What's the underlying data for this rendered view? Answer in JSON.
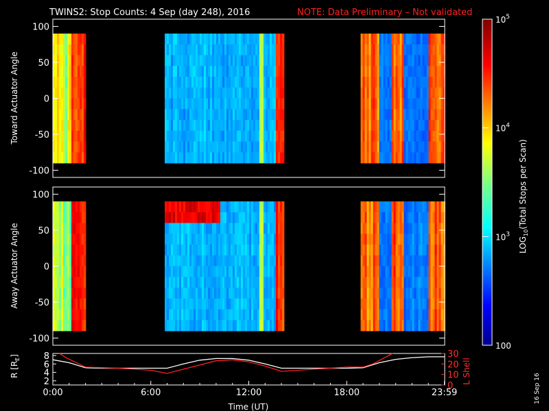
{
  "title": {
    "main": "TWINS2: Stop Counts:  4 Sep (day 248), 2016",
    "note": "NOTE: Data Preliminary – Not validated"
  },
  "side_stamp": "16 Sep 16",
  "chart_data": [
    {
      "type": "heatmap",
      "id": "toward",
      "ylabel": "Toward Actuator Angle",
      "ylim": [
        -110,
        110
      ],
      "yticks": [
        -100,
        -50,
        0,
        50,
        100
      ],
      "data_ylim": [
        -90,
        90
      ],
      "xlim": [
        0,
        24
      ],
      "segments": [
        {
          "start": 0.0,
          "end": 2.0
        },
        {
          "start": 6.85,
          "end": 14.15
        },
        {
          "start": 18.85,
          "end": 24.0
        }
      ],
      "color_scale": "log",
      "note": "Blue background (~10^2.8) with orange/red vertical bands near segment edges"
    },
    {
      "type": "heatmap",
      "id": "away",
      "ylabel": "Away Actuator Angle",
      "ylim": [
        -110,
        110
      ],
      "yticks": [
        -100,
        -50,
        0,
        50,
        100
      ],
      "data_ylim": [
        -90,
        90
      ],
      "xlim": [
        0,
        24
      ],
      "segments": [
        {
          "start": 0.0,
          "end": 2.0
        },
        {
          "start": 6.85,
          "end": 14.15
        },
        {
          "start": 18.85,
          "end": 24.0
        }
      ],
      "color_scale": "log",
      "note": "Red/orange horizontal band near +75 deg during 6:50-10:00"
    },
    {
      "type": "line",
      "id": "orbit",
      "ylabel_left": "R [R",
      "ylabel_left_sub": "E",
      "ylabel_left_end": "]",
      "ylabel_right": "L Shell",
      "xlim": [
        0,
        24
      ],
      "ylim_left": [
        1,
        8.5
      ],
      "ylim_right": [
        0,
        30
      ],
      "yticks_left": [
        2,
        4,
        6,
        8
      ],
      "yticks_right": [
        0,
        10,
        20,
        30
      ],
      "xticks": [
        {
          "value": 0,
          "label": "0:00"
        },
        {
          "value": 6,
          "label": "6:00"
        },
        {
          "value": 12,
          "label": "12:00"
        },
        {
          "value": 18,
          "label": "18:00"
        },
        {
          "value": 23.98,
          "label": "23:59"
        }
      ],
      "xlabel": "Time (UT)",
      "series": [
        {
          "axis": "left",
          "color": "#ffffff",
          "x": [
            0,
            1,
            2,
            3,
            4,
            5,
            6,
            7,
            8,
            9,
            10,
            11,
            12,
            13,
            14,
            15,
            16,
            17,
            18,
            19,
            20,
            21,
            22,
            23,
            24
          ],
          "y": [
            7.0,
            6.3,
            5.1,
            5.0,
            5.0,
            5.0,
            5.0,
            5.0,
            6.0,
            6.9,
            7.3,
            7.3,
            6.9,
            6.0,
            5.0,
            5.0,
            5.0,
            5.0,
            5.0,
            5.1,
            6.3,
            7.1,
            7.5,
            7.7,
            7.7
          ]
        },
        {
          "axis": "right",
          "color": "#ff2020",
          "x": [
            0.4,
            0.8,
            2.0,
            4.0,
            6.0,
            7.0,
            8.5,
            10.0,
            11.0,
            12.0,
            13.0,
            14.0,
            16.0,
            18.0,
            19.0,
            19.6,
            20.2,
            20.8
          ],
          "y": [
            30,
            26,
            17,
            16,
            14,
            11,
            17,
            23,
            24,
            22,
            18,
            13,
            15,
            17,
            17,
            20,
            25,
            30
          ]
        }
      ]
    },
    {
      "type": "colorbar",
      "id": "colorbar",
      "scale": "log",
      "range": [
        100,
        100000
      ],
      "label": "LOG",
      "label_sub": "10",
      "label_end": "(Total Stops per Scan)",
      "ticks": [
        {
          "value": 100000,
          "label": "10",
          "exp": "5"
        },
        {
          "value": 10000,
          "label": "10",
          "exp": "4"
        },
        {
          "value": 1000,
          "label": "10",
          "exp": "3"
        },
        {
          "value": 100,
          "label": "100",
          "exp": ""
        }
      ]
    }
  ]
}
